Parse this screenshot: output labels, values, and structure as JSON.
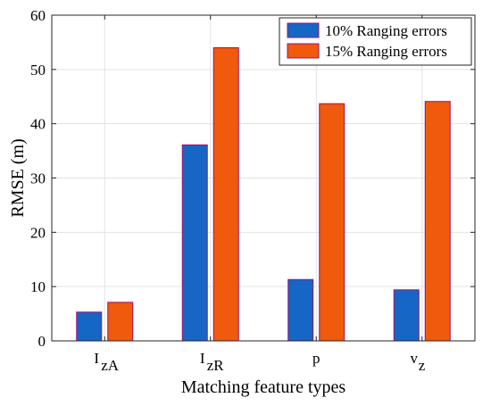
{
  "chart_data": {
    "type": "bar",
    "categories": [
      {
        "main": "I",
        "sub": "zA"
      },
      {
        "main": "I",
        "sub": "zR"
      },
      {
        "main": "p",
        "sub": ""
      },
      {
        "main": "v",
        "sub": "z"
      }
    ],
    "series": [
      {
        "name": "10% Ranging errors",
        "values": [
          5.3,
          36.1,
          11.3,
          9.4
        ],
        "color": "#1666c5"
      },
      {
        "name": "15% Ranging errors",
        "values": [
          7.1,
          54.0,
          43.7,
          44.1
        ],
        "color": "#ef5a0c"
      }
    ],
    "title": "",
    "xlabel": "Matching feature types",
    "ylabel": "RMSE (m)",
    "ylim": [
      0,
      60
    ],
    "yticks": [
      0,
      10,
      20,
      30,
      40,
      50,
      60
    ],
    "grid": true,
    "legend_position": "top-right",
    "bar_edge_color": "#a0106e"
  }
}
